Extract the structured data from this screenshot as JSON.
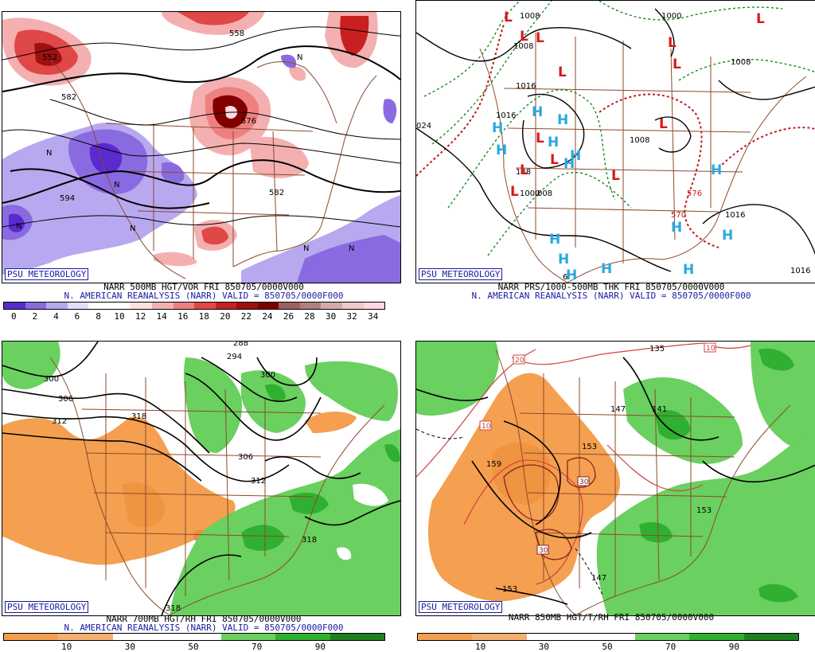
{
  "panels": {
    "tl": {
      "logo": "PSU METEOROLOGY",
      "caption1": "NARR 500MB HGT/VOR FRI 850705/0000V000",
      "caption2": "N. AMERICAN REANALYSIS (NARR) VALID = 850705/0000F000",
      "colorbar_labels": [
        "0",
        "2",
        "4",
        "6",
        "8",
        "10",
        "12",
        "14",
        "16",
        "18",
        "20",
        "22",
        "24",
        "26",
        "28",
        "30",
        "32",
        "34"
      ],
      "contour_labels": [
        "582",
        "594",
        "582",
        "576",
        "558",
        "552"
      ],
      "n_labels": [
        "N",
        "N",
        "N",
        "N",
        "N",
        "N",
        "N"
      ],
      "colorbar_colors": [
        "#5a2ad0",
        "#8a6ae0",
        "#b8a8f0",
        "#e4dcfa",
        "#ffffff",
        "#ffffff",
        "#fde0e0",
        "#f4b0b0",
        "#ee8080",
        "#e04848",
        "#c82020",
        "#a01010",
        "#800000",
        "#a06060",
        "#b08080",
        "#d8a8a8",
        "#f0c8c8",
        "#ffd8e0"
      ]
    },
    "tr": {
      "logo": "PSU METEOROLOGY",
      "caption1": "NARR PRS/1000-500MB THK FRI 850705/0000V000",
      "caption2": "N. AMERICAN REANALYSIS (NARR) VALID = 850705/0000F000",
      "contour_labels": [
        "1008",
        "1008",
        "1000",
        "1008",
        "1016",
        "024",
        "1008",
        "1016",
        "1016",
        "1000",
        "576",
        "570",
        "1016",
        "6",
        "008",
        "138"
      ],
      "low_symbol": "L",
      "high_symbol": "H"
    },
    "bl": {
      "logo": "PSU METEOROLOGY",
      "caption1": "NARR 700MB HGT/RH FRI 850705/0000V000",
      "caption2": "N. AMERICAN REANALYSIS (NARR) VALID = 850705/0000F000",
      "colorbar_labels": [
        "10",
        "30",
        "50",
        "70",
        "90"
      ],
      "contour_labels": [
        "300",
        "306",
        "312",
        "318",
        "294",
        "300",
        "306",
        "312",
        "318",
        "318",
        "288"
      ],
      "colorbar_colors": [
        "#f4a050",
        "#f4b070",
        "#ffffff",
        "#ffffff",
        "#6ad060",
        "#30b030",
        "#208020"
      ]
    },
    "br": {
      "logo": "PSU METEOROLOGY",
      "caption1": "NARR 850MB HGT/T/RH FRI 850705/0000V000",
      "colorbar_labels": [
        "10",
        "30",
        "50",
        "70",
        "90"
      ],
      "contour_labels": [
        "135",
        "147",
        "141",
        "153",
        "153",
        "159",
        "153",
        "147"
      ],
      "temp_labels": [
        "20",
        "10",
        "10",
        "30",
        "30"
      ],
      "colorbar_colors": [
        "#f4a050",
        "#f4b070",
        "#ffffff",
        "#ffffff",
        "#6ad060",
        "#30b030",
        "#208020"
      ]
    }
  }
}
